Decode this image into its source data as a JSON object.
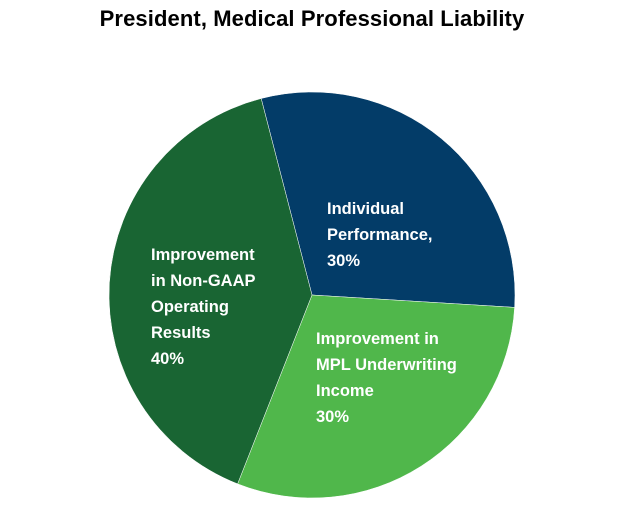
{
  "chart_data": {
    "type": "pie",
    "title": "President, Medical Professional Liability",
    "slices": [
      {
        "label_lines": [
          "Individual",
          "Performance,",
          "30%"
        ],
        "value": 30,
        "color": "#033c68"
      },
      {
        "label_lines": [
          "Improvement in",
          "MPL Underwriting",
          "Income",
          "30%"
        ],
        "value": 30,
        "color": "#50b74b"
      },
      {
        "label_lines": [
          "Improvement",
          "in Non-GAAP",
          "Operating",
          "Results",
          "40%"
        ],
        "value": 40,
        "color": "#196533"
      }
    ]
  }
}
